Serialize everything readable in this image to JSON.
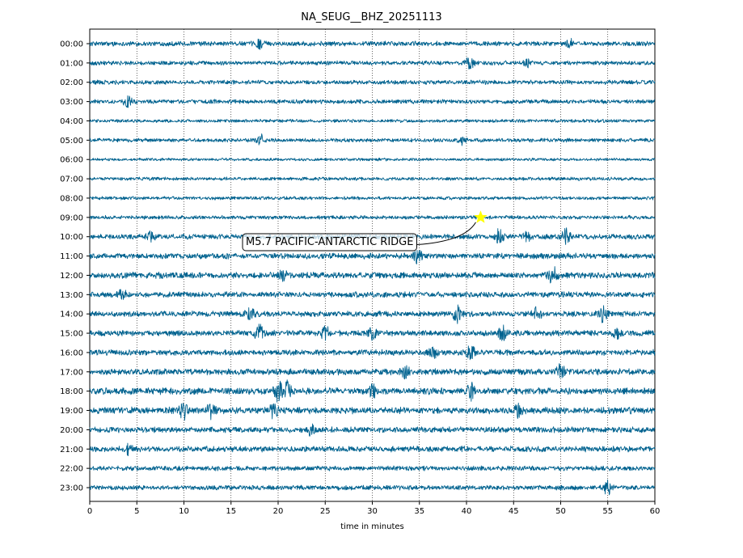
{
  "chart_data": {
    "type": "line",
    "title": "NA_SEUG__BHZ_20251113",
    "xlabel": "time in minutes",
    "ylabel": "",
    "xlim": [
      0,
      60
    ],
    "x_ticks": [
      0,
      5,
      10,
      15,
      20,
      25,
      30,
      35,
      40,
      45,
      50,
      55,
      60
    ],
    "grid": "vertical dotted lines at every 5 minutes",
    "trace_color": "#00628f",
    "hours": [
      "00:00",
      "01:00",
      "02:00",
      "03:00",
      "04:00",
      "05:00",
      "06:00",
      "07:00",
      "08:00",
      "09:00",
      "10:00",
      "11:00",
      "12:00",
      "13:00",
      "14:00",
      "15:00",
      "16:00",
      "17:00",
      "18:00",
      "19:00",
      "20:00",
      "21:00",
      "22:00",
      "23:00"
    ],
    "noise_amplitude": [
      0.5,
      0.45,
      0.45,
      0.45,
      0.35,
      0.4,
      0.3,
      0.35,
      0.35,
      0.4,
      0.55,
      0.6,
      0.65,
      0.6,
      0.6,
      0.6,
      0.6,
      0.65,
      0.7,
      0.7,
      0.6,
      0.6,
      0.5,
      0.5
    ],
    "bursts": [
      {
        "hour": "00:00",
        "minute": 18,
        "amp": 0.9
      },
      {
        "hour": "00:00",
        "minute": 51,
        "amp": 0.8
      },
      {
        "hour": "01:00",
        "minute": 40.3,
        "amp": 2.0
      },
      {
        "hour": "01:00",
        "minute": 46.5,
        "amp": 0.8
      },
      {
        "hour": "03:00",
        "minute": 4,
        "amp": 1.3
      },
      {
        "hour": "05:00",
        "minute": 18.2,
        "amp": 1.2
      },
      {
        "hour": "05:00",
        "minute": 39.5,
        "amp": 0.9
      },
      {
        "hour": "10:00",
        "minute": 6.5,
        "amp": 1.1
      },
      {
        "hour": "10:00",
        "minute": 43.5,
        "amp": 1.6
      },
      {
        "hour": "10:00",
        "minute": 46.5,
        "amp": 1.1
      },
      {
        "hour": "10:00",
        "minute": 50.5,
        "amp": 2.0
      },
      {
        "hour": "11:00",
        "minute": 34.8,
        "amp": 1.6
      },
      {
        "hour": "12:00",
        "minute": 49.2,
        "amp": 2.0
      },
      {
        "hour": "12:00",
        "minute": 20.5,
        "amp": 1.2
      },
      {
        "hour": "13:00",
        "minute": 3.5,
        "amp": 1.0
      },
      {
        "hour": "14:00",
        "minute": 17,
        "amp": 1.3
      },
      {
        "hour": "14:00",
        "minute": 39,
        "amp": 2.0
      },
      {
        "hour": "14:00",
        "minute": 47.5,
        "amp": 1.4
      },
      {
        "hour": "14:00",
        "minute": 54.5,
        "amp": 1.8
      },
      {
        "hour": "15:00",
        "minute": 18,
        "amp": 1.8
      },
      {
        "hour": "15:00",
        "minute": 25,
        "amp": 1.5
      },
      {
        "hour": "15:00",
        "minute": 30,
        "amp": 1.2
      },
      {
        "hour": "15:00",
        "minute": 43.8,
        "amp": 1.6
      },
      {
        "hour": "15:00",
        "minute": 56,
        "amp": 1.0
      },
      {
        "hour": "16:00",
        "minute": 36.5,
        "amp": 1.3
      },
      {
        "hour": "16:00",
        "minute": 40.5,
        "amp": 1.5
      },
      {
        "hour": "17:00",
        "minute": 33.5,
        "amp": 1.3
      },
      {
        "hour": "17:00",
        "minute": 50,
        "amp": 1.5
      },
      {
        "hour": "18:00",
        "minute": 20,
        "amp": 2.2
      },
      {
        "hour": "18:00",
        "minute": 21,
        "amp": 2.0
      },
      {
        "hour": "18:00",
        "minute": 30,
        "amp": 1.4
      },
      {
        "hour": "18:00",
        "minute": 40.5,
        "amp": 1.9
      },
      {
        "hour": "19:00",
        "minute": 10,
        "amp": 1.9
      },
      {
        "hour": "19:00",
        "minute": 12.8,
        "amp": 1.6
      },
      {
        "hour": "19:00",
        "minute": 19.5,
        "amp": 1.8
      },
      {
        "hour": "19:00",
        "minute": 45.5,
        "amp": 1.4
      },
      {
        "hour": "20:00",
        "minute": 23.5,
        "amp": 1.0
      },
      {
        "hour": "21:00",
        "minute": 4,
        "amp": 1.0
      },
      {
        "hour": "23:00",
        "minute": 55,
        "amp": 1.4
      }
    ],
    "annotations": [
      {
        "text": "M5.7 PACIFIC-ANTARCTIC RIDGE",
        "marker": "star",
        "marker_color": "#ffff00",
        "hour": "09:00",
        "minute": 41.5
      }
    ]
  }
}
